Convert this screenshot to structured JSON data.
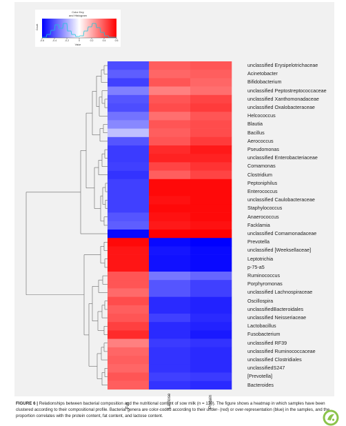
{
  "color_key": {
    "title_line1": "Color Key",
    "title_line2": "and Histogram",
    "ylabel": "Count",
    "xlabel": "Value",
    "ticks": [
      "-0.6",
      "-0.4",
      "-0.2",
      "0",
      "0.2",
      "0.4",
      "0.6"
    ]
  },
  "columns": [
    "Fat",
    "Lactose",
    "Protein"
  ],
  "chart_data": {
    "type": "heatmap",
    "rows": [
      "unclassified Erysipelotrichaceae",
      "Acinetobacter",
      "Bifidobacterium",
      "unclassified Peptostreptococcaceae",
      "unclassified Xanthomonadaceae",
      "unclassified Oxalobacteraceae",
      "Helcococcus",
      "Blautia",
      "Bacillus",
      "Aerococcus",
      "Pseudomonas",
      "unclassified Enterobacteriaceae",
      "Comamonas",
      "Clostridium",
      "Peptoniphilus",
      "Enterococcus",
      "unclassified Caulobacteraceae",
      "Staphylococcus",
      "Anaerococcus",
      "Facklamia",
      "unclassified Comamonadaceae",
      "Prevotella",
      "unclassified [Weeksellaceae]",
      "Leptotrichia",
      "p-75-a5",
      "Ruminococcus",
      "Porphyromonas",
      "unclassified Lachnospiraceae",
      "Oscillospira",
      "unclassifiedBacteroidales",
      "unclassified Neisseriaceae",
      "Lactobacillus",
      "Fusobacterium",
      "unclassified RF39",
      "unclassified Ruminococcaceae",
      "unclassified Clostridiales",
      "unclassifiedS247",
      "[Prevotella]",
      "Bacteroides"
    ],
    "columns": [
      "Fat",
      "Lactose",
      "Protein"
    ],
    "value_range": [
      -0.6,
      0.6
    ],
    "values": [
      [
        -0.42,
        0.38,
        0.4
      ],
      [
        -0.38,
        0.36,
        0.38
      ],
      [
        -0.45,
        0.4,
        0.36
      ],
      [
        -0.3,
        0.3,
        0.34
      ],
      [
        -0.4,
        0.4,
        0.44
      ],
      [
        -0.42,
        0.42,
        0.46
      ],
      [
        -0.33,
        0.34,
        0.4
      ],
      [
        -0.28,
        0.4,
        0.42
      ],
      [
        -0.15,
        0.38,
        0.42
      ],
      [
        -0.4,
        0.4,
        0.46
      ],
      [
        -0.46,
        0.5,
        0.54
      ],
      [
        -0.46,
        0.52,
        0.52
      ],
      [
        -0.45,
        0.44,
        0.48
      ],
      [
        -0.48,
        0.38,
        0.44
      ],
      [
        -0.45,
        0.58,
        0.58
      ],
      [
        -0.45,
        0.58,
        0.58
      ],
      [
        -0.45,
        0.56,
        0.58
      ],
      [
        -0.45,
        0.58,
        0.58
      ],
      [
        -0.4,
        0.56,
        0.58
      ],
      [
        -0.38,
        0.54,
        0.56
      ],
      [
        -0.58,
        0.6,
        0.6
      ],
      [
        0.58,
        -0.58,
        -0.6
      ],
      [
        0.55,
        -0.55,
        -0.58
      ],
      [
        0.55,
        -0.56,
        -0.58
      ],
      [
        0.55,
        -0.56,
        -0.58
      ],
      [
        0.4,
        -0.32,
        -0.36
      ],
      [
        0.4,
        -0.4,
        -0.45
      ],
      [
        0.35,
        -0.4,
        -0.45
      ],
      [
        0.42,
        -0.5,
        -0.52
      ],
      [
        0.38,
        -0.5,
        -0.52
      ],
      [
        0.4,
        -0.45,
        -0.5
      ],
      [
        0.45,
        -0.5,
        -0.52
      ],
      [
        0.5,
        -0.5,
        -0.54
      ],
      [
        0.3,
        -0.46,
        -0.48
      ],
      [
        0.36,
        -0.48,
        -0.5
      ],
      [
        0.38,
        -0.48,
        -0.5
      ],
      [
        0.36,
        -0.48,
        -0.5
      ],
      [
        0.4,
        -0.45,
        -0.46
      ],
      [
        0.38,
        -0.48,
        -0.5
      ]
    ]
  },
  "caption": {
    "lead": "FIGURE 6 |",
    "text": " Relationships between bacterial composition and the nutritional content of sow milk (n = 130). The figure shows a heatmap in which samples have been clustered according to their compositional profile. Bacterial genera are color-coded according to their under- (red) or over-representation (blue) in the samples, and the proportion correlates with the protein content, fat content, and lactose content."
  },
  "colors": {
    "low": "#0000ff",
    "mid": "#ffffff",
    "high": "#ff0000",
    "panel": "#f1f1f1"
  }
}
